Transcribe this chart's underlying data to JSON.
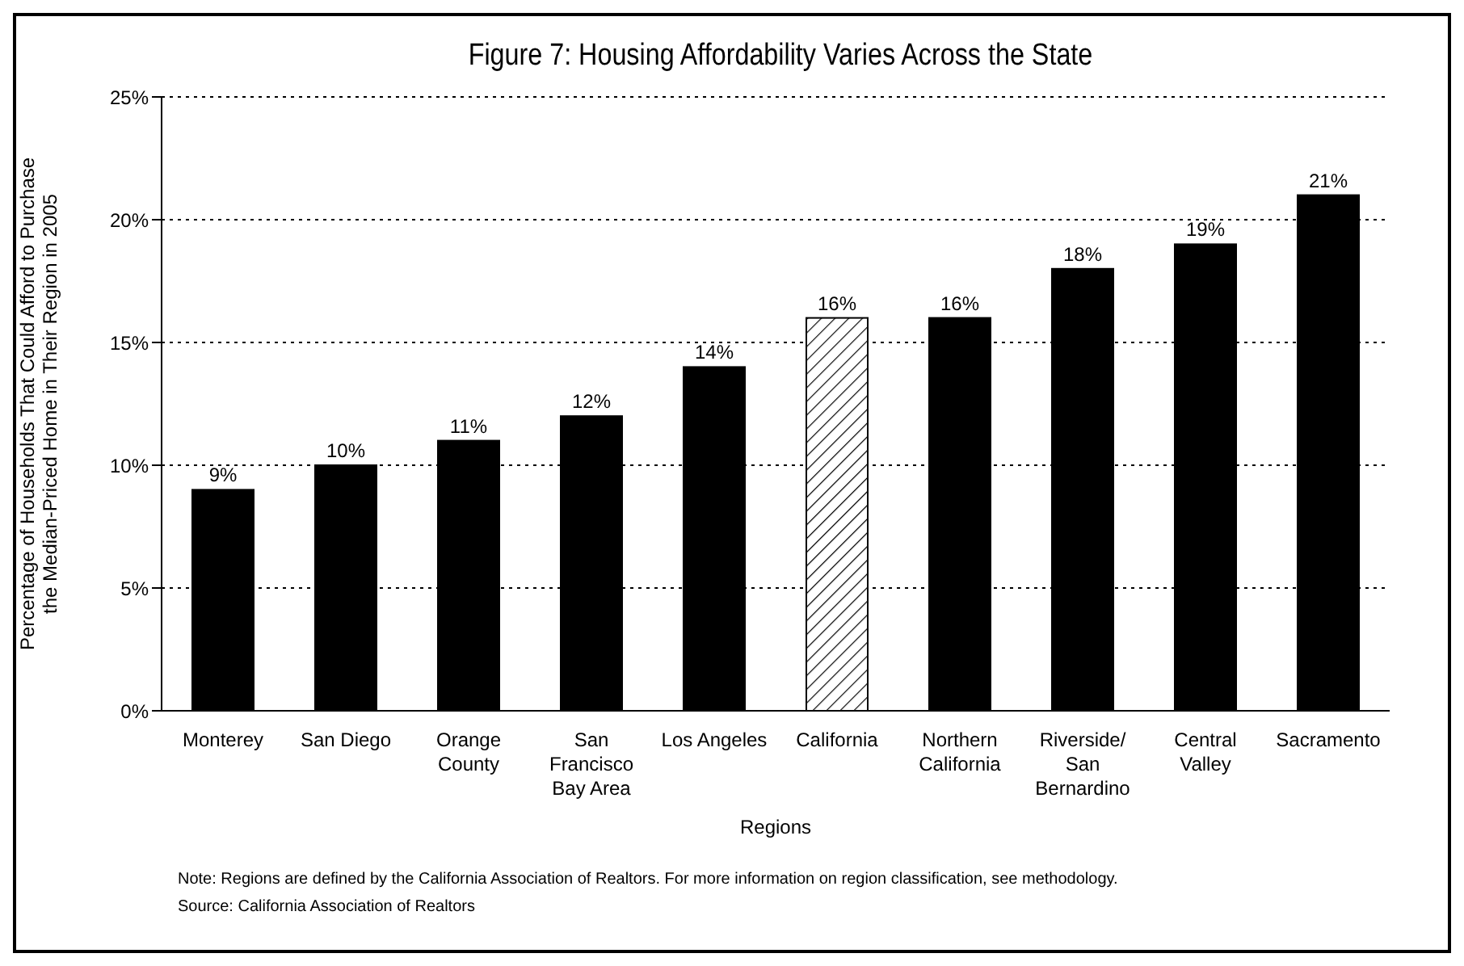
{
  "chart_data": {
    "type": "bar",
    "title": "Figure 7: Housing Affordability Varies Across the State",
    "xlabel": "Regions",
    "ylabel": "Percentage of Households That Could Afford to Purchase the Median-Priced Home in Their Region in 2005",
    "categories": [
      "Monterey",
      "San Diego",
      "Orange County",
      "San Francisco Bay Area",
      "Los Angeles",
      "California",
      "Northern California",
      "Riverside/ San Bernardino",
      "Central Valley",
      "Sacramento"
    ],
    "values": [
      9,
      10,
      11,
      12,
      14,
      16,
      16,
      18,
      19,
      21
    ],
    "colors": [
      "#000000",
      "#000000",
      "#000000",
      "#000000",
      "#000000",
      "#ffffff",
      "#000000",
      "#000000",
      "#000000",
      "#000000"
    ],
    "value_labels": [
      "9%",
      "10%",
      "11%",
      "12%",
      "14%",
      "16%",
      "16%",
      "18%",
      "19%",
      "21%"
    ],
    "ylim": [
      0,
      25
    ],
    "yticks": [
      {
        "value": 0,
        "label": "0%"
      },
      {
        "value": 5,
        "label": "5%"
      },
      {
        "value": 10,
        "label": "10%"
      },
      {
        "value": 15,
        "label": "15%"
      },
      {
        "value": 20,
        "label": "20%"
      },
      {
        "value": 25,
        "label": "25%"
      }
    ],
    "grid": "y",
    "legend": false,
    "annotations": [
      "Note: Regions are defined by the California Association of Realtors.  For more information on region classification, see methodology.",
      "Source: California Association of Realtors"
    ]
  }
}
